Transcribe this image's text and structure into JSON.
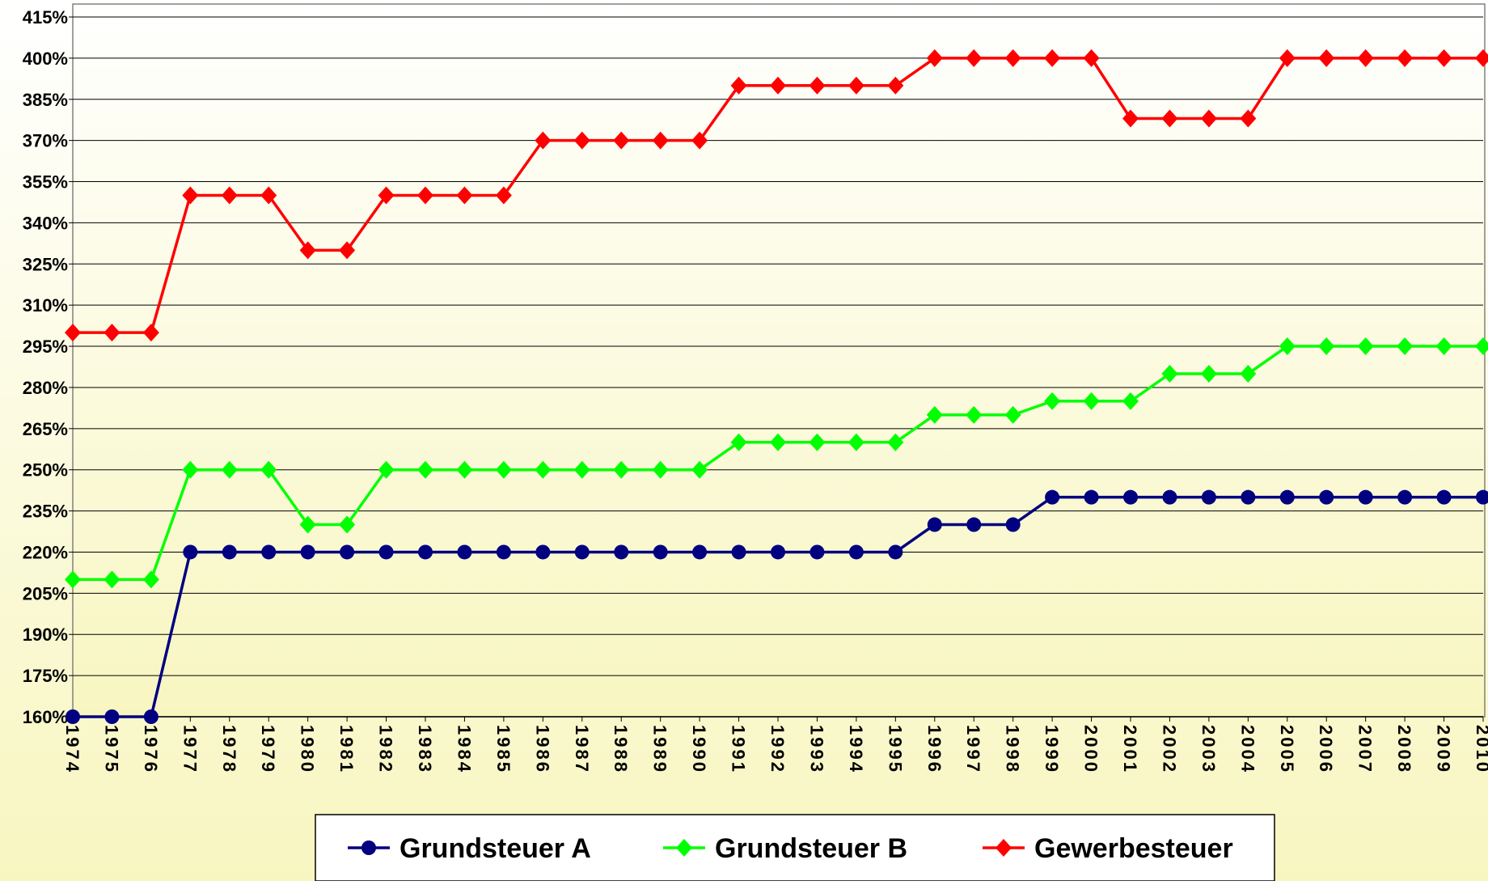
{
  "chart_data": {
    "type": "line",
    "categories": [
      "1974",
      "1975",
      "1976",
      "1977",
      "1978",
      "1979",
      "1980",
      "1981",
      "1982",
      "1983",
      "1984",
      "1985",
      "1986",
      "1987",
      "1988",
      "1989",
      "1990",
      "1991",
      "1992",
      "1993",
      "1994",
      "1995",
      "1996",
      "1997",
      "1998",
      "1999",
      "2000",
      "2001",
      "2002",
      "2003",
      "2004",
      "2005",
      "2006",
      "2007",
      "2008",
      "2009",
      "2010"
    ],
    "series": [
      {
        "name": "Grundsteuer A",
        "color": "#000080",
        "marker": "circle",
        "values": [
          160,
          160,
          160,
          220,
          220,
          220,
          220,
          220,
          220,
          220,
          220,
          220,
          220,
          220,
          220,
          220,
          220,
          220,
          220,
          220,
          220,
          220,
          230,
          230,
          230,
          240,
          240,
          240,
          240,
          240,
          240,
          240,
          240,
          240,
          240,
          240,
          240
        ]
      },
      {
        "name": "Grundsteuer B",
        "color": "#00ff00",
        "marker": "diamond",
        "values": [
          210,
          210,
          210,
          250,
          250,
          250,
          230,
          230,
          250,
          250,
          250,
          250,
          250,
          250,
          250,
          250,
          250,
          260,
          260,
          260,
          260,
          260,
          270,
          270,
          270,
          275,
          275,
          275,
          285,
          285,
          285,
          295,
          295,
          295,
          295,
          295,
          295
        ]
      },
      {
        "name": "Gewerbesteuer",
        "color": "#ff0000",
        "marker": "diamond",
        "values": [
          300,
          300,
          300,
          350,
          350,
          350,
          330,
          330,
          350,
          350,
          350,
          350,
          370,
          370,
          370,
          370,
          370,
          390,
          390,
          390,
          390,
          390,
          400,
          400,
          400,
          400,
          400,
          378,
          378,
          378,
          378,
          400,
          400,
          400,
          400,
          400,
          400
        ]
      }
    ],
    "ylim": [
      160,
      415
    ],
    "yticks": [
      {
        "value": 160,
        "label": "160%"
      },
      {
        "value": 175,
        "label": "175%"
      },
      {
        "value": 190,
        "label": "190%"
      },
      {
        "value": 205,
        "label": "205%"
      },
      {
        "value": 220,
        "label": "220%"
      },
      {
        "value": 235,
        "label": "235%"
      },
      {
        "value": 250,
        "label": "250%"
      },
      {
        "value": 265,
        "label": "265%"
      },
      {
        "value": 280,
        "label": "280%"
      },
      {
        "value": 295,
        "label": "295%"
      },
      {
        "value": 310,
        "label": "310%"
      },
      {
        "value": 325,
        "label": "325%"
      },
      {
        "value": 340,
        "label": "340%"
      },
      {
        "value": 355,
        "label": "355%"
      },
      {
        "value": 370,
        "label": "370%"
      },
      {
        "value": 385,
        "label": "385%"
      },
      {
        "value": 400,
        "label": "400%"
      },
      {
        "value": 415,
        "label": "415%"
      }
    ],
    "grid": true
  }
}
